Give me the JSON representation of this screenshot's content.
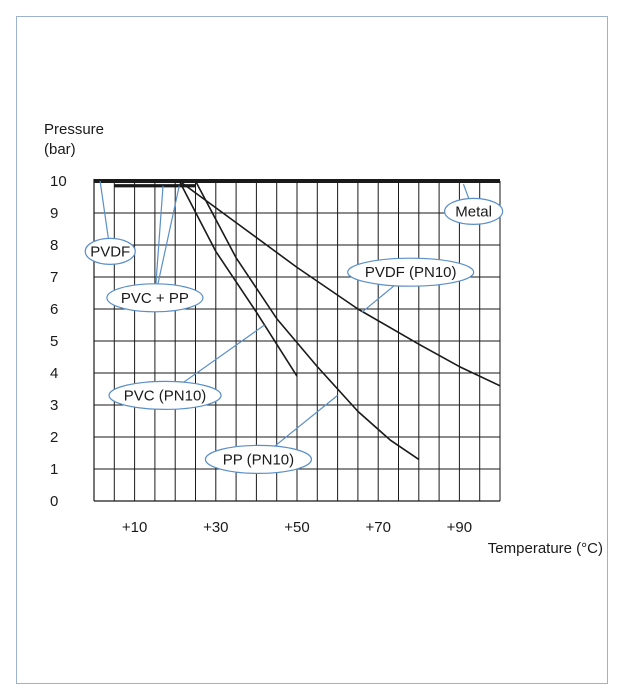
{
  "chart_data": {
    "type": "line",
    "ylabel_line1": "Pressure",
    "ylabel_line2": "(bar)",
    "xlabel": "Temperature (°C)",
    "xlim": [
      0,
      100
    ],
    "ylim": [
      0,
      10
    ],
    "grid": true,
    "x_ticks": [
      {
        "value": 10,
        "label": "+10"
      },
      {
        "value": 30,
        "label": "+30"
      },
      {
        "value": 50,
        "label": "+50"
      },
      {
        "value": 70,
        "label": "+70"
      },
      {
        "value": 90,
        "label": "+90"
      }
    ],
    "y_ticks": [
      {
        "value": 0,
        "label": "0"
      },
      {
        "value": 1,
        "label": "1"
      },
      {
        "value": 2,
        "label": "2"
      },
      {
        "value": 3,
        "label": "3"
      },
      {
        "value": 4,
        "label": "4"
      },
      {
        "value": 5,
        "label": "5"
      },
      {
        "value": 6,
        "label": "6"
      },
      {
        "value": 7,
        "label": "7"
      },
      {
        "value": 8,
        "label": "8"
      },
      {
        "value": 9,
        "label": "9"
      },
      {
        "value": 10,
        "label": "10"
      }
    ],
    "series": [
      {
        "name": "Metal",
        "x": [
          0,
          100
        ],
        "y": [
          10,
          10
        ]
      },
      {
        "name": "PVDF",
        "x": [
          5,
          25
        ],
        "y": [
          9.85,
          9.85
        ]
      },
      {
        "name": "PVC + PP",
        "x": [
          5,
          25
        ],
        "y": [
          9.85,
          9.85
        ]
      },
      {
        "name": "PVC (PN10)",
        "x": [
          21,
          30,
          40,
          50
        ],
        "y": [
          10,
          7.8,
          5.9,
          3.9
        ]
      },
      {
        "name": "PP (PN10)",
        "x": [
          25,
          35,
          45,
          55,
          65,
          73,
          80
        ],
        "y": [
          10,
          7.6,
          5.7,
          4.2,
          2.8,
          1.9,
          1.3
        ]
      },
      {
        "name": "PVDF (PN10)",
        "x": [
          21,
          35,
          50,
          65,
          80,
          90,
          100
        ],
        "y": [
          10,
          8.7,
          7.3,
          6.0,
          4.9,
          4.2,
          3.6
        ]
      }
    ],
    "annotations": [
      {
        "text": "Metal"
      },
      {
        "text": "PVDF"
      },
      {
        "text": "PVC + PP"
      },
      {
        "text": "PVDF (PN10)"
      },
      {
        "text": "PVC (PN10)"
      },
      {
        "text": "PP (PN10)"
      }
    ]
  }
}
